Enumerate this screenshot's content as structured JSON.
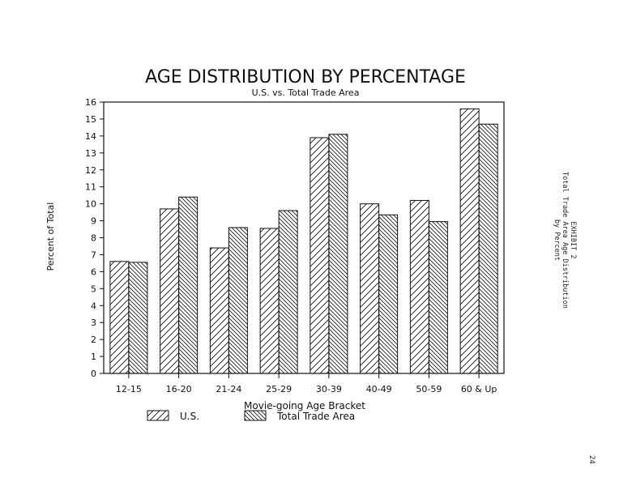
{
  "chart_data": {
    "type": "bar",
    "title": "AGE DISTRIBUTION BY PERCENTAGE",
    "subtitle": "U.S. vs. Total Trade Area",
    "xlabel": "Movie-going Age Bracket",
    "ylabel": "Percent of Total",
    "ylim": [
      0,
      16
    ],
    "yticks": [
      0,
      1,
      2,
      3,
      4,
      5,
      6,
      7,
      8,
      9,
      10,
      11,
      12,
      13,
      14,
      15,
      16
    ],
    "categories": [
      "12-15",
      "16-20",
      "21-24",
      "25-29",
      "30-39",
      "40-49",
      "50-59",
      "60 & Up"
    ],
    "series": [
      {
        "name": "U.S.",
        "pattern": "forward-hatch",
        "values": [
          6.6,
          9.7,
          7.4,
          8.55,
          13.9,
          10.0,
          10.2,
          15.6
        ]
      },
      {
        "name": "Total Trade Area",
        "pattern": "back-hatch",
        "values": [
          6.55,
          10.4,
          8.6,
          9.6,
          14.1,
          9.35,
          8.95,
          14.7
        ]
      }
    ],
    "legend_position": "bottom",
    "grid": false
  },
  "side_note": {
    "line1": "EXHIBIT 2",
    "line2": "Total Trade Area Age Distribution",
    "line3": "by Percent"
  },
  "page_number": "24"
}
